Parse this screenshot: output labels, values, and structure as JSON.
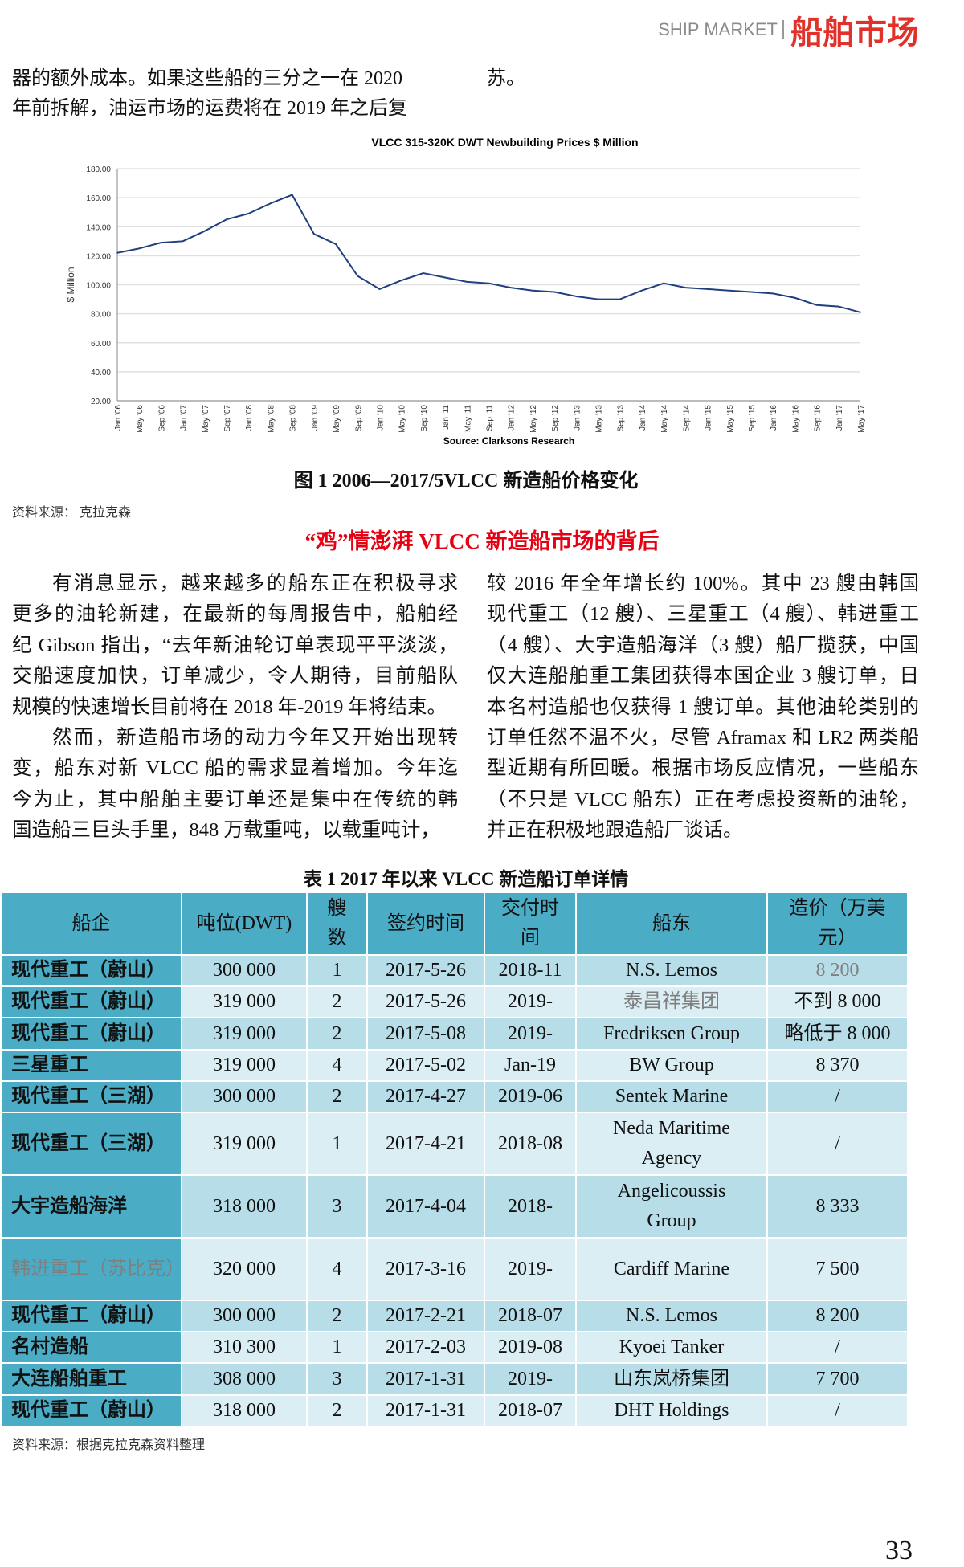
{
  "header": {
    "en": "SHIP MARKET",
    "cn": "船舶市场"
  },
  "intro": {
    "left": [
      "器的额外成本。如果这些船的三分之一在  2020",
      "年前拆解，油运市场的运费将在  2019  年之后复"
    ],
    "right": "苏。"
  },
  "chart_data": {
    "type": "line",
    "title": "VLCC 315-320K DWT Newbuilding Prices $ Million",
    "ylabel": "$ Million",
    "source": "Source: Clarksons Research",
    "ylim": [
      20,
      180
    ],
    "yticks": [
      "20.00",
      "40.00",
      "60.00",
      "80.00",
      "100.00",
      "120.00",
      "140.00",
      "160.00",
      "180.00"
    ],
    "grid": true,
    "line_color": "#1f3f7f",
    "categories": [
      "Jan '06",
      "May '06",
      "Sep '06",
      "Jan '07",
      "May '07",
      "Sep '07",
      "Jan '08",
      "May '08",
      "Sep '08",
      "Jan '09",
      "May '09",
      "Sep '09",
      "Jan '10",
      "May '10",
      "Sep '10",
      "Jan '11",
      "May '11",
      "Sep '11",
      "Jan '12",
      "May '12",
      "Sep '12",
      "Jan '13",
      "May '13",
      "Sep '13",
      "Jan '14",
      "May '14",
      "Sep '14",
      "Jan '15",
      "May '15",
      "Sep '15",
      "Jan '16",
      "May '16",
      "Sep '16",
      "Jan '17",
      "May '17"
    ],
    "values": [
      122,
      125,
      129,
      130,
      137,
      145,
      149,
      156,
      162,
      135,
      128,
      106,
      97,
      103,
      108,
      105,
      102,
      101,
      98,
      96,
      95,
      92,
      90,
      90,
      96,
      101,
      98,
      97,
      96,
      95,
      94,
      91,
      86,
      85,
      81
    ]
  },
  "figure_caption": "图 1 2006—2017/5VLCC 新造船价格变化",
  "figure_source": "资料来源：   克拉克森",
  "section_title": "“鸡”情澎湃 VLCC 新造船市场的背后",
  "left_col": [
    "有消息显示，越来越多的船东正在积极寻求",
    "更多的油轮新建，在最新的每周报告中，船舶经",
    "纪 Gibson 指出，“去年新油轮订单表现平平淡淡，",
    "交船速度加快，订单减少，令人期待，目前船队",
    "规模的快速增长目前将在 2018 年-2019 年将结束。",
    "然而，新造船市场的动力今年又开始出现转",
    "变，船东对新 VLCC 船的需求显着增加。今年迄",
    "今为止，其中船舶主要订单还是集中在传统的韩",
    "国造船三巨头手里，848 万载重吨，以载重吨计，"
  ],
  "right_col": [
    "较 2016 年全年增长约 100%。其中 23 艘由韩国",
    "现代重工（12 艘）、三星重工（4 艘）、韩进重工",
    "（4 艘）、大宇造船海洋（3 艘）船厂揽获，中国",
    "仅大连船舶重工集团获得本国企业 3 艘订单，日",
    "本名村造船也仅获得 1 艘订单。其他油轮类别的",
    "订单任然不温不火，尽管 Aframax 和 LR2 两类船",
    "型近期有所回暖。根据市场反应情况，一些船东",
    "（不只是 VLCC 船东）正在考虑投资新的油轮，",
    "并正在积极地跟造船厂谈话。"
  ],
  "table": {
    "title": "表 1 2017 年以来 VLCC 新造船订单详情",
    "headers": [
      "船企",
      "吨位(DWT)",
      "艘数",
      "签约时间",
      "交付时间",
      "船东",
      "造价（万美元）"
    ],
    "rows": [
      [
        "现代重工（蔚山）",
        "300 000",
        "1",
        "2017-5-26",
        "2018-11",
        "N.S. Lemos",
        "8 200"
      ],
      [
        "现代重工（蔚山）",
        "319 000",
        "2",
        "2017-5-26",
        "2019-",
        "泰昌祥集团",
        "不到 8 000"
      ],
      [
        "现代重工（蔚山）",
        "319 000",
        "2",
        "2017-5-08",
        "2019-",
        "Fredriksen Group",
        "略低于 8 000"
      ],
      [
        "三星重工",
        "319 000",
        "4",
        "2017-5-02",
        "Jan-19",
        "BW Group",
        "8 370"
      ],
      [
        "现代重工（三湖）",
        "300 000",
        "2",
        "2017-4-27",
        "2019-06",
        "Sentek Marine",
        "/"
      ],
      [
        "现代重工（三湖）",
        "319 000",
        "1",
        "2017-4-21",
        "2018-08",
        "Neda Maritime Agency",
        "/"
      ],
      [
        "大宇造船海洋",
        "318 000",
        "3",
        "2017-4-04",
        "2018-",
        "Angelicoussis Group",
        "8 333"
      ],
      [
        "韩进重工（苏比克）",
        "320 000",
        "4",
        "2017-3-16",
        "2019-",
        "Cardiff Marine",
        "7 500"
      ],
      [
        "现代重工（蔚山）",
        "300 000",
        "2",
        "2017-2-21",
        "2018-07",
        "N.S. Lemos",
        "8 200"
      ],
      [
        "名村造船",
        "310 300",
        "1",
        "2017-2-03",
        "2019-08",
        "Kyoei Tanker",
        "/"
      ],
      [
        "大连船舶重工",
        "308 000",
        "3",
        "2017-1-31",
        "2019-",
        "山东岚桥集团",
        "7 700"
      ],
      [
        "现代重工（蔚山）",
        "318 000",
        "2",
        "2017-1-31",
        "2018-07",
        "DHT Holdings",
        "/"
      ]
    ],
    "source": "资料来源：根据克拉克森资料整理"
  },
  "page_number": "33"
}
